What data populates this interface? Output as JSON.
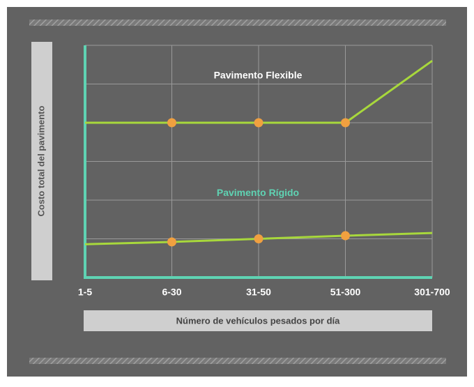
{
  "chart_data": {
    "type": "line",
    "x_label": "Número de vehículos pesados por día",
    "y_label": "Costo total del pavimento",
    "categories": [
      "1-5",
      "6-30",
      "31-50",
      "51-300",
      "301-700"
    ],
    "series": [
      {
        "name": "Pavimento Flexible",
        "color": "#a8d83c",
        "label_color": "#ffffff",
        "values": [
          4.0,
          4.0,
          4.0,
          4.0,
          5.6
        ]
      },
      {
        "name": "Pavimento Rígido",
        "color": "#a8d83c",
        "label_color": "#5fd3b3",
        "values": [
          0.86,
          0.92,
          1.0,
          1.08,
          1.15
        ]
      }
    ],
    "marker_indices": [
      1,
      2,
      3
    ],
    "marker_color": "#f0a040",
    "ylim": [
      0,
      6
    ],
    "ygrid": [
      1,
      2,
      3,
      4,
      5,
      6
    ],
    "grid": true,
    "axis_color": "#5fd3b3"
  }
}
